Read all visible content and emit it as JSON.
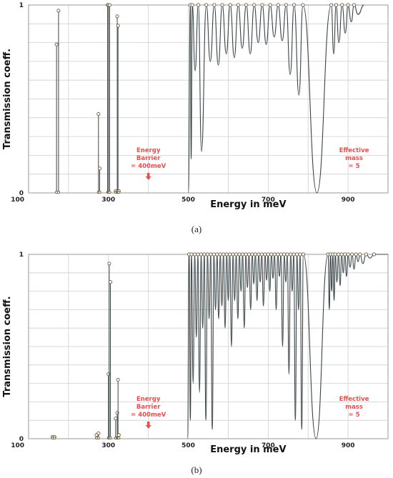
{
  "chart_data": [
    {
      "type": "line",
      "panel_label": "(a)",
      "xlabel": "Energy in meV",
      "ylabel": "Transmission coeff.",
      "xlim": [
        100,
        1000
      ],
      "ylim": [
        0,
        1
      ],
      "x_ticks": [
        "100",
        "300",
        "500",
        "700",
        "900"
      ],
      "y_ticks": [
        "0",
        "1"
      ],
      "grid": true,
      "annotations": [
        {
          "lines": [
            "Energy",
            "Barrier",
            "= 400meV"
          ],
          "arrow": true,
          "x": 400
        },
        {
          "lines": [
            "Effective",
            "mass",
            "= 5"
          ],
          "x": 915
        }
      ],
      "spikes": [
        {
          "x": 170,
          "y": 0.79
        },
        {
          "x": 175,
          "y": 0.97
        },
        {
          "x": 275,
          "y": 0.42
        },
        {
          "x": 278,
          "y": 0.13
        },
        {
          "x": 298,
          "y": 1.0
        },
        {
          "x": 300,
          "y": 1.0
        },
        {
          "x": 303,
          "y": 1.0
        },
        {
          "x": 318,
          "y": 0.01
        },
        {
          "x": 322,
          "y": 0.94
        },
        {
          "x": 324,
          "y": 0.89
        },
        {
          "x": 326,
          "y": 0.01
        }
      ],
      "peaks": [
        505,
        510,
        525,
        545,
        565,
        585,
        605,
        625,
        645,
        665,
        685,
        705,
        725,
        745,
        765,
        787,
        858,
        870,
        885,
        900,
        915
      ],
      "minima": [
        {
          "x": 500,
          "y": 0.0
        },
        {
          "x": 507,
          "y": 0.18
        },
        {
          "x": 517,
          "y": 0.65
        },
        {
          "x": 533,
          "y": 0.22
        },
        {
          "x": 555,
          "y": 0.7
        },
        {
          "x": 575,
          "y": 0.68
        },
        {
          "x": 595,
          "y": 0.74
        },
        {
          "x": 615,
          "y": 0.72
        },
        {
          "x": 635,
          "y": 0.77
        },
        {
          "x": 655,
          "y": 0.74
        },
        {
          "x": 675,
          "y": 0.8
        },
        {
          "x": 695,
          "y": 0.79
        },
        {
          "x": 715,
          "y": 0.83
        },
        {
          "x": 735,
          "y": 0.81
        },
        {
          "x": 755,
          "y": 0.63
        },
        {
          "x": 777,
          "y": 0.52
        },
        {
          "x": 822,
          "y": 0.0
        },
        {
          "x": 864,
          "y": 0.74
        },
        {
          "x": 877,
          "y": 0.8
        },
        {
          "x": 893,
          "y": 0.85
        },
        {
          "x": 908,
          "y": 0.91
        }
      ],
      "tail": [
        {
          "x": 925,
          "y": 0.95
        },
        {
          "x": 940,
          "y": 1.0
        }
      ]
    },
    {
      "type": "line",
      "panel_label": "(b)",
      "xlabel": "Energy in meV",
      "ylabel": "Transmission coeff.",
      "xlim": [
        100,
        1000
      ],
      "ylim": [
        0,
        1
      ],
      "x_ticks": [
        "100",
        "300",
        "500",
        "700",
        "900"
      ],
      "y_ticks": [
        "0",
        "1"
      ],
      "grid": true,
      "annotations": [
        {
          "lines": [
            "Energy",
            "Barrier",
            "= 400meV"
          ],
          "arrow": true,
          "x": 400
        },
        {
          "lines": [
            "Effective",
            "mass",
            "= 5"
          ],
          "x": 915
        }
      ],
      "spikes": [
        {
          "x": 160,
          "y": 0.01
        },
        {
          "x": 165,
          "y": 0.01
        },
        {
          "x": 270,
          "y": 0.02
        },
        {
          "x": 275,
          "y": 0.03
        },
        {
          "x": 300,
          "y": 0.35
        },
        {
          "x": 302,
          "y": 0.95
        },
        {
          "x": 305,
          "y": 0.85
        },
        {
          "x": 318,
          "y": 0.11
        },
        {
          "x": 322,
          "y": 0.14
        },
        {
          "x": 324,
          "y": 0.32
        },
        {
          "x": 326,
          "y": 0.02
        }
      ],
      "peaks": [
        502,
        508,
        516,
        524,
        532,
        540,
        548,
        556,
        564,
        572,
        580,
        588,
        596,
        604,
        612,
        620,
        628,
        636,
        644,
        652,
        660,
        668,
        676,
        684,
        692,
        700,
        708,
        716,
        724,
        732,
        740,
        748,
        756,
        764,
        772,
        780,
        788,
        850,
        856,
        862,
        868,
        876,
        884,
        892,
        900,
        910,
        920,
        930,
        945,
        965
      ],
      "minima": [
        {
          "x": 498,
          "y": 0.0
        },
        {
          "x": 505,
          "y": 0.1
        },
        {
          "x": 512,
          "y": 0.3
        },
        {
          "x": 520,
          "y": 0.55
        },
        {
          "x": 528,
          "y": 0.25
        },
        {
          "x": 536,
          "y": 0.6
        },
        {
          "x": 544,
          "y": 0.1
        },
        {
          "x": 552,
          "y": 0.65
        },
        {
          "x": 560,
          "y": 0.05
        },
        {
          "x": 568,
          "y": 0.7
        },
        {
          "x": 576,
          "y": 0.65
        },
        {
          "x": 584,
          "y": 0.72
        },
        {
          "x": 592,
          "y": 0.6
        },
        {
          "x": 600,
          "y": 0.75
        },
        {
          "x": 608,
          "y": 0.5
        },
        {
          "x": 616,
          "y": 0.75
        },
        {
          "x": 624,
          "y": 0.65
        },
        {
          "x": 632,
          "y": 0.8
        },
        {
          "x": 640,
          "y": 0.6
        },
        {
          "x": 648,
          "y": 0.82
        },
        {
          "x": 656,
          "y": 0.7
        },
        {
          "x": 664,
          "y": 0.84
        },
        {
          "x": 672,
          "y": 0.75
        },
        {
          "x": 680,
          "y": 0.85
        },
        {
          "x": 688,
          "y": 0.72
        },
        {
          "x": 696,
          "y": 0.86
        },
        {
          "x": 704,
          "y": 0.8
        },
        {
          "x": 712,
          "y": 0.87
        },
        {
          "x": 720,
          "y": 0.7
        },
        {
          "x": 728,
          "y": 0.88
        },
        {
          "x": 736,
          "y": 0.5
        },
        {
          "x": 744,
          "y": 0.85
        },
        {
          "x": 752,
          "y": 0.35
        },
        {
          "x": 760,
          "y": 0.8
        },
        {
          "x": 768,
          "y": 0.1
        },
        {
          "x": 776,
          "y": 0.7
        },
        {
          "x": 784,
          "y": 0.05
        },
        {
          "x": 820,
          "y": 0.0
        },
        {
          "x": 853,
          "y": 0.7
        },
        {
          "x": 859,
          "y": 0.8
        },
        {
          "x": 865,
          "y": 0.75
        },
        {
          "x": 872,
          "y": 0.85
        },
        {
          "x": 880,
          "y": 0.83
        },
        {
          "x": 888,
          "y": 0.9
        },
        {
          "x": 896,
          "y": 0.88
        },
        {
          "x": 905,
          "y": 0.93
        },
        {
          "x": 915,
          "y": 0.92
        },
        {
          "x": 925,
          "y": 0.96
        },
        {
          "x": 937,
          "y": 0.95
        },
        {
          "x": 955,
          "y": 0.98
        }
      ],
      "tail": [
        {
          "x": 980,
          "y": 1.0
        },
        {
          "x": 1000,
          "y": 1.0
        }
      ]
    }
  ]
}
